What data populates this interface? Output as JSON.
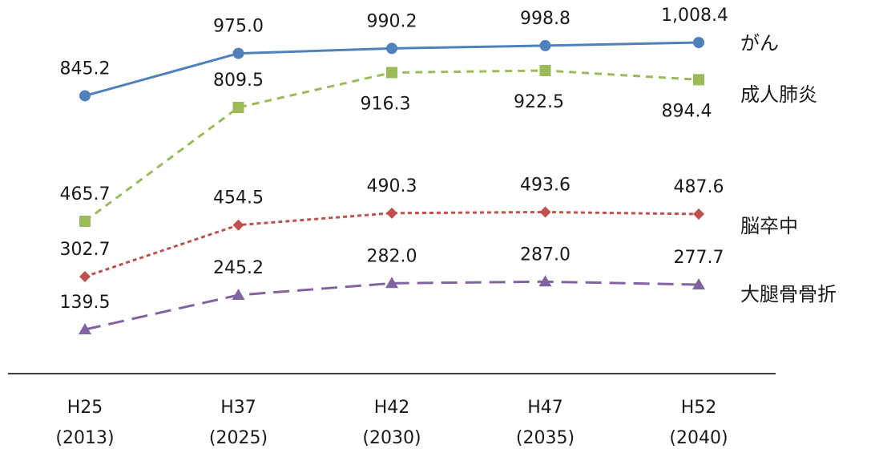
{
  "chart_data": {
    "type": "line",
    "title": "",
    "xlabel": "",
    "ylabel": "",
    "categories": [
      {
        "era": "H25",
        "year": "(2013)"
      },
      {
        "era": "H37",
        "year": "(2025)"
      },
      {
        "era": "H42",
        "year": "(2030)"
      },
      {
        "era": "H47",
        "year": "(2035)"
      },
      {
        "era": "H52",
        "year": "(2040)"
      }
    ],
    "ylim": [
      0,
      1100
    ],
    "grid": false,
    "legend": "right (series labels placed next to the last point)",
    "series": [
      {
        "name": "がん",
        "values": [
          845.2,
          975.0,
          990.2,
          998.8,
          1008.4
        ],
        "labels": [
          "845.2",
          "975.0",
          "990.2",
          "998.8",
          "1,008.4"
        ],
        "color": "#4f81bd",
        "marker": "circle",
        "dash": "solid"
      },
      {
        "name": "成人肺炎",
        "values": [
          465.7,
          809.5,
          916.3,
          922.5,
          894.4
        ],
        "labels": [
          "465.7",
          "809.5",
          "916.3",
          "922.5",
          "894.4"
        ],
        "color": "#9bbb59",
        "marker": "square",
        "dash": "dash"
      },
      {
        "name": "脳卒中",
        "values": [
          302.7,
          454.5,
          490.3,
          493.6,
          487.6
        ],
        "labels": [
          "302.7",
          "454.5",
          "490.3",
          "493.6",
          "487.6"
        ],
        "color": "#c0504d",
        "marker": "diamond",
        "dash": "dot"
      },
      {
        "name": "大腿骨骨折",
        "values": [
          139.5,
          245.2,
          282.0,
          287.0,
          277.7
        ],
        "labels": [
          "139.5",
          "245.2",
          "282.0",
          "287.0",
          "277.7"
        ],
        "color": "#8064a2",
        "marker": "triangle",
        "dash": "longdash"
      }
    ]
  }
}
